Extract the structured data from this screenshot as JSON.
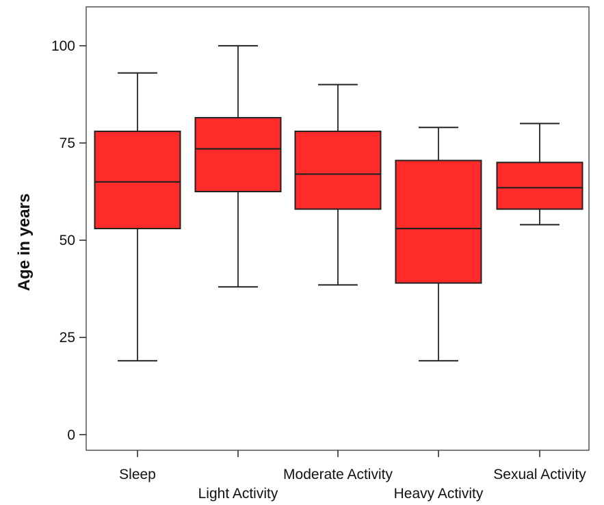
{
  "chart_data": {
    "type": "box",
    "categories": [
      "Sleep",
      "Light Activity",
      "Moderate Activity",
      "Heavy Activity",
      "Sexual Activity"
    ],
    "boxes": [
      {
        "category": "Sleep",
        "min": 19,
        "q1": 53,
        "median": 65,
        "q3": 78,
        "max": 93
      },
      {
        "category": "Light Activity",
        "min": 38,
        "q1": 62.5,
        "median": 73.5,
        "q3": 81.5,
        "max": 100
      },
      {
        "category": "Moderate Activity",
        "min": 38.5,
        "q1": 58,
        "median": 67,
        "q3": 78,
        "max": 90
      },
      {
        "category": "Heavy Activity",
        "min": 19,
        "q1": 39,
        "median": 53,
        "q3": 70.5,
        "max": 79
      },
      {
        "category": "Sexual Activity",
        "min": 54,
        "q1": 58,
        "median": 63.5,
        "q3": 70,
        "max": 80
      }
    ],
    "yticks": [
      "0",
      "25",
      "50",
      "75",
      "100"
    ],
    "ylim": [
      -4,
      110
    ],
    "ylabel": "Age in years",
    "xlabel": "",
    "title": "",
    "box_color": "#ff2a2a",
    "grid": false
  }
}
